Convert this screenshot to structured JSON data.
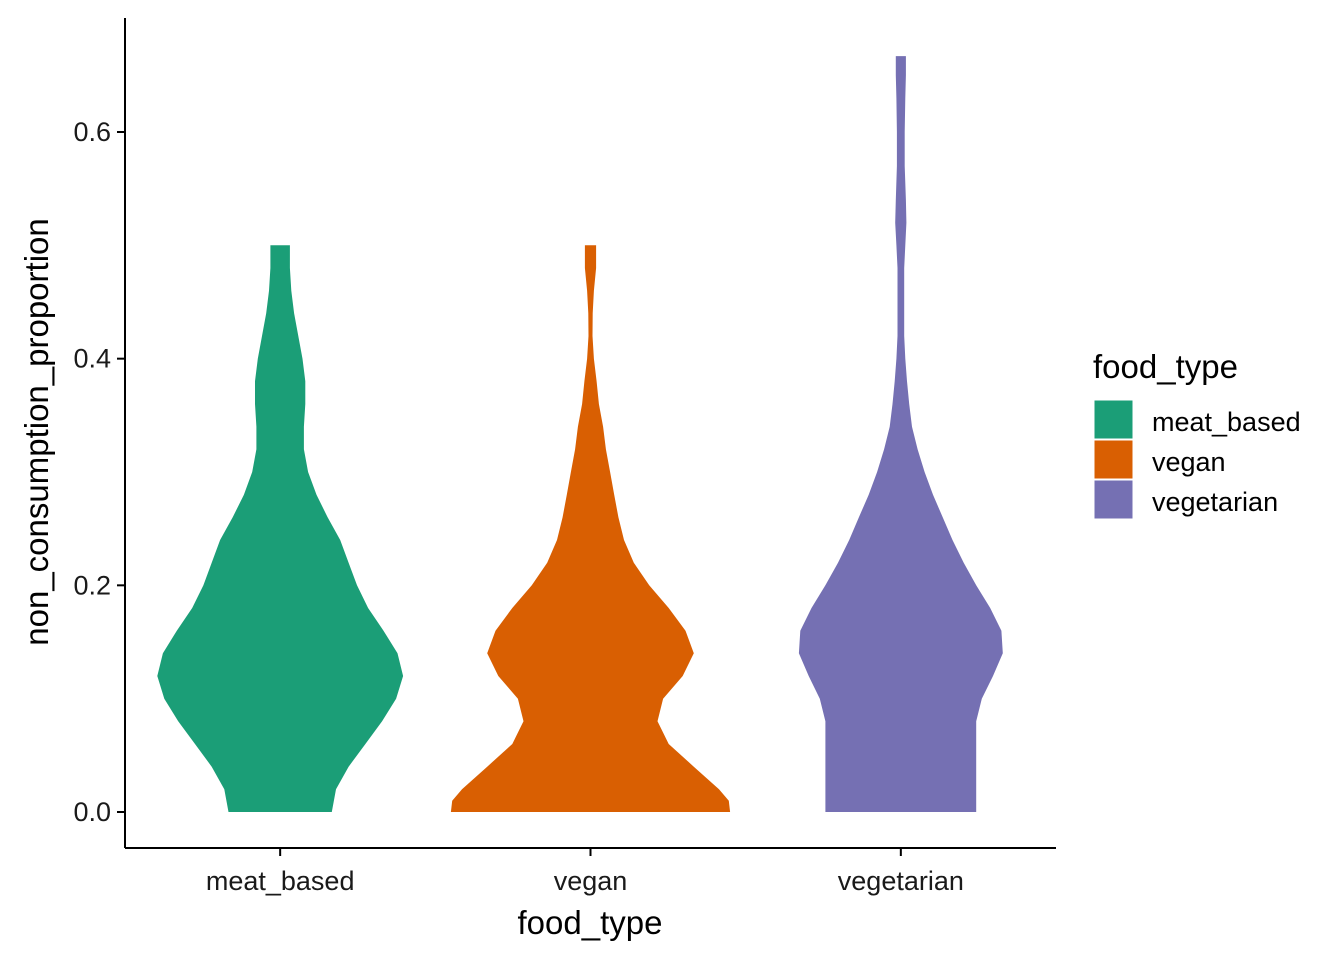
{
  "chart_data": {
    "type": "violin",
    "xlabel": "food_type",
    "ylabel": "non_consumption_proportion",
    "categories": [
      "meat_based",
      "vegan",
      "vegetarian"
    ],
    "colors": {
      "meat_based": "#1b9e77",
      "vegan": "#d95f02",
      "vegetarian": "#7570b3"
    },
    "ylim": [
      -0.032,
      0.7
    ],
    "yticks": [
      0.0,
      0.2,
      0.4,
      0.6
    ],
    "ytick_labels": [
      "0.0",
      "0.2",
      "0.4",
      "0.6"
    ],
    "grid": false,
    "legend": {
      "title": "food_type",
      "position": "right",
      "entries": [
        "meat_based",
        "vegan",
        "vegetarian"
      ]
    },
    "series": [
      {
        "name": "meat_based",
        "y_range": [
          0.0,
          0.5
        ],
        "density_profile": [
          {
            "y": 0.0,
            "half_width": 0.185
          },
          {
            "y": 0.02,
            "half_width": 0.2
          },
          {
            "y": 0.04,
            "half_width": 0.245
          },
          {
            "y": 0.06,
            "half_width": 0.305
          },
          {
            "y": 0.08,
            "half_width": 0.365
          },
          {
            "y": 0.1,
            "half_width": 0.415
          },
          {
            "y": 0.12,
            "half_width": 0.44
          },
          {
            "y": 0.14,
            "half_width": 0.42
          },
          {
            "y": 0.16,
            "half_width": 0.37
          },
          {
            "y": 0.18,
            "half_width": 0.315
          },
          {
            "y": 0.2,
            "half_width": 0.275
          },
          {
            "y": 0.22,
            "half_width": 0.245
          },
          {
            "y": 0.24,
            "half_width": 0.215
          },
          {
            "y": 0.26,
            "half_width": 0.17
          },
          {
            "y": 0.28,
            "half_width": 0.13
          },
          {
            "y": 0.3,
            "half_width": 0.1
          },
          {
            "y": 0.32,
            "half_width": 0.085
          },
          {
            "y": 0.34,
            "half_width": 0.085
          },
          {
            "y": 0.36,
            "half_width": 0.09
          },
          {
            "y": 0.38,
            "half_width": 0.09
          },
          {
            "y": 0.4,
            "half_width": 0.08
          },
          {
            "y": 0.42,
            "half_width": 0.065
          },
          {
            "y": 0.44,
            "half_width": 0.05
          },
          {
            "y": 0.46,
            "half_width": 0.04
          },
          {
            "y": 0.48,
            "half_width": 0.035
          },
          {
            "y": 0.5,
            "half_width": 0.035
          }
        ]
      },
      {
        "name": "vegan",
        "y_range": [
          0.0,
          0.5
        ],
        "density_profile": [
          {
            "y": 0.0,
            "half_width": 0.5
          },
          {
            "y": 0.01,
            "half_width": 0.495
          },
          {
            "y": 0.02,
            "half_width": 0.46
          },
          {
            "y": 0.04,
            "half_width": 0.37
          },
          {
            "y": 0.06,
            "half_width": 0.28
          },
          {
            "y": 0.08,
            "half_width": 0.24
          },
          {
            "y": 0.1,
            "half_width": 0.26
          },
          {
            "y": 0.12,
            "half_width": 0.33
          },
          {
            "y": 0.14,
            "half_width": 0.37
          },
          {
            "y": 0.16,
            "half_width": 0.34
          },
          {
            "y": 0.18,
            "half_width": 0.28
          },
          {
            "y": 0.2,
            "half_width": 0.21
          },
          {
            "y": 0.22,
            "half_width": 0.155
          },
          {
            "y": 0.24,
            "half_width": 0.12
          },
          {
            "y": 0.26,
            "half_width": 0.1
          },
          {
            "y": 0.28,
            "half_width": 0.085
          },
          {
            "y": 0.3,
            "half_width": 0.07
          },
          {
            "y": 0.32,
            "half_width": 0.055
          },
          {
            "y": 0.34,
            "half_width": 0.045
          },
          {
            "y": 0.36,
            "half_width": 0.03
          },
          {
            "y": 0.38,
            "half_width": 0.022
          },
          {
            "y": 0.4,
            "half_width": 0.012
          },
          {
            "y": 0.42,
            "half_width": 0.007
          },
          {
            "y": 0.44,
            "half_width": 0.008
          },
          {
            "y": 0.46,
            "half_width": 0.012
          },
          {
            "y": 0.48,
            "half_width": 0.02
          },
          {
            "y": 0.5,
            "half_width": 0.02
          }
        ]
      },
      {
        "name": "vegetarian",
        "y_range": [
          0.0,
          0.667
        ],
        "density_profile": [
          {
            "y": 0.0,
            "half_width": 0.27
          },
          {
            "y": 0.02,
            "half_width": 0.27
          },
          {
            "y": 0.04,
            "half_width": 0.27
          },
          {
            "y": 0.06,
            "half_width": 0.27
          },
          {
            "y": 0.08,
            "half_width": 0.27
          },
          {
            "y": 0.1,
            "half_width": 0.29
          },
          {
            "y": 0.12,
            "half_width": 0.33
          },
          {
            "y": 0.14,
            "half_width": 0.365
          },
          {
            "y": 0.16,
            "half_width": 0.36
          },
          {
            "y": 0.18,
            "half_width": 0.32
          },
          {
            "y": 0.2,
            "half_width": 0.27
          },
          {
            "y": 0.22,
            "half_width": 0.225
          },
          {
            "y": 0.24,
            "half_width": 0.185
          },
          {
            "y": 0.26,
            "half_width": 0.15
          },
          {
            "y": 0.28,
            "half_width": 0.115
          },
          {
            "y": 0.3,
            "half_width": 0.085
          },
          {
            "y": 0.32,
            "half_width": 0.06
          },
          {
            "y": 0.34,
            "half_width": 0.04
          },
          {
            "y": 0.36,
            "half_width": 0.03
          },
          {
            "y": 0.38,
            "half_width": 0.022
          },
          {
            "y": 0.4,
            "half_width": 0.016
          },
          {
            "y": 0.42,
            "half_width": 0.012
          },
          {
            "y": 0.45,
            "half_width": 0.012
          },
          {
            "y": 0.48,
            "half_width": 0.012
          },
          {
            "y": 0.5,
            "half_width": 0.016
          },
          {
            "y": 0.52,
            "half_width": 0.02
          },
          {
            "y": 0.54,
            "half_width": 0.018
          },
          {
            "y": 0.57,
            "half_width": 0.014
          },
          {
            "y": 0.6,
            "half_width": 0.014
          },
          {
            "y": 0.63,
            "half_width": 0.016
          },
          {
            "y": 0.65,
            "half_width": 0.018
          },
          {
            "y": 0.667,
            "half_width": 0.018
          }
        ]
      }
    ]
  }
}
